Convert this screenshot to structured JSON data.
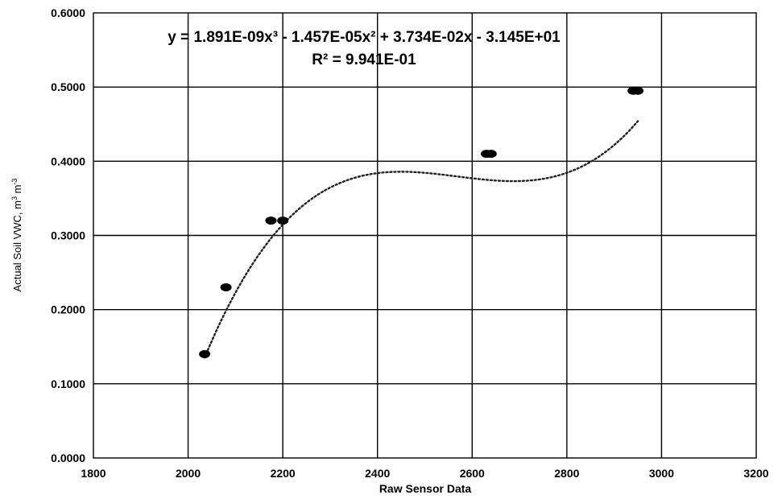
{
  "chart_data": {
    "type": "scatter",
    "xlabel": "Raw Sensor Data",
    "ylabel_main": "Actual Soil VWC, m",
    "ylabel_sup1": "3",
    "ylabel_mid": " m",
    "ylabel_sup2": "-3",
    "xlim": [
      1800,
      3200
    ],
    "ylim": [
      0.0,
      0.6
    ],
    "x_ticks": [
      1800,
      2000,
      2200,
      2400,
      2600,
      2800,
      3000,
      3200
    ],
    "y_ticks": [
      0.0,
      0.1,
      0.2,
      0.3,
      0.4,
      0.5,
      0.6
    ],
    "x_tick_labels": [
      "1800",
      "2000",
      "2200",
      "2400",
      "2600",
      "2800",
      "3000",
      "3200"
    ],
    "y_tick_labels": [
      "0.0000",
      "0.1000",
      "0.2000",
      "0.3000",
      "0.4000",
      "0.5000",
      "0.6000"
    ],
    "grid": true,
    "points": [
      {
        "x": 2035,
        "y": 0.14
      },
      {
        "x": 2080,
        "y": 0.23
      },
      {
        "x": 2175,
        "y": 0.32
      },
      {
        "x": 2200,
        "y": 0.32
      },
      {
        "x": 2630,
        "y": 0.41
      },
      {
        "x": 2640,
        "y": 0.41
      },
      {
        "x": 2940,
        "y": 0.495
      },
      {
        "x": 2950,
        "y": 0.495
      }
    ],
    "trendline": {
      "type": "polynomial-3",
      "coefficients": [
        -31.45,
        0.03734,
        -1.457e-05,
        1.891e-09
      ],
      "x_range": [
        2035,
        2950
      ]
    },
    "equation_text": "y = 1.891E-09x³ - 1.457E-05x² + 3.734E-02x - 3.145E+01",
    "r2_text": "R² = 9.941E-01"
  }
}
